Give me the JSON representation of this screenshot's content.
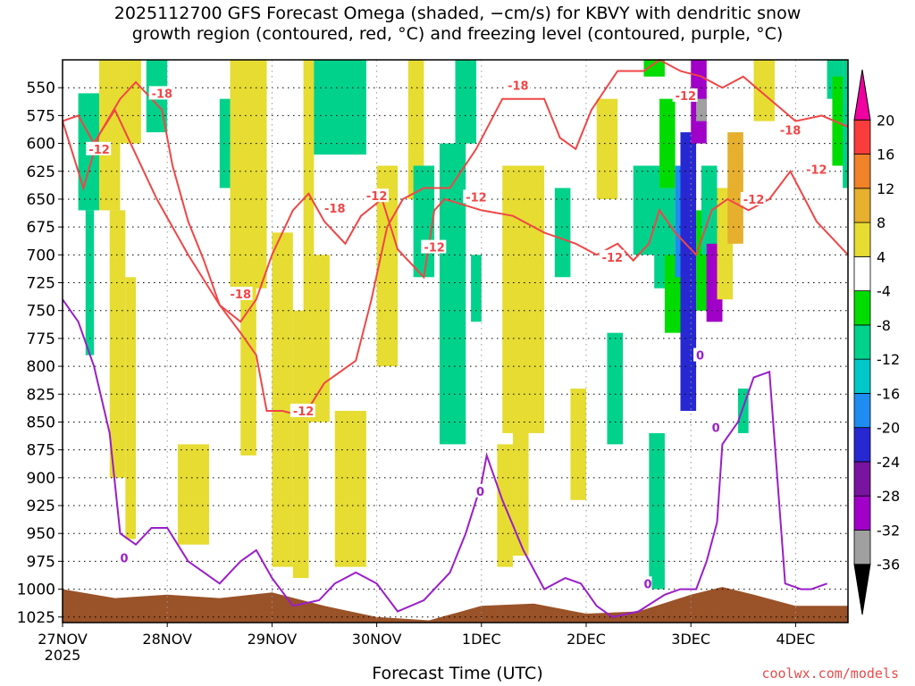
{
  "title": "2025112700 GFS Forecast Omega (shaded, −cm/s) for KBVY with dendritic snow\ngrowth region (contoured, red, °C) and freezing level (contoured, purple, °C)",
  "credit": "coolwx.com/models",
  "chart_data": {
    "type": "heatmap",
    "xlabel": "Forecast Time (UTC)",
    "x_ticks": [
      "27NOV",
      "28NOV",
      "29NOV",
      "30NOV",
      "1DEC",
      "2DEC",
      "3DEC",
      "4DEC"
    ],
    "x_first_tick_sublabel": "2025",
    "x_range_days": [
      0,
      7.5
    ],
    "y_ticks": [
      550,
      575,
      600,
      625,
      650,
      675,
      700,
      725,
      750,
      775,
      800,
      825,
      850,
      875,
      900,
      925,
      950,
      975,
      1000,
      1025
    ],
    "y_range_hPa": [
      1030,
      525
    ],
    "grid": "dotted",
    "colorbar": {
      "levels": [
        -36,
        -32,
        -28,
        -24,
        -20,
        -16,
        -12,
        -8,
        -4,
        4,
        8,
        12,
        16,
        20
      ],
      "colors": [
        "#000000",
        "#a0a0a0",
        "#a000c8",
        "#7814a0",
        "#2828d2",
        "#1e8cf0",
        "#00c8c8",
        "#00d28c",
        "#00dc00",
        "#ffffff",
        "#e6dc32",
        "#e6af2d",
        "#f08228",
        "#fa3c3c",
        "#f000a0"
      ]
    },
    "series": [
      {
        "name": "dendritic snow growth (-12)",
        "color": "#f04646",
        "points": [
          [
            0.0,
            580
          ],
          [
            0.2,
            640
          ],
          [
            0.35,
            592
          ],
          [
            0.5,
            570
          ],
          [
            0.65,
            600
          ],
          [
            0.9,
            650
          ],
          [
            1.2,
            700
          ],
          [
            1.5,
            745
          ],
          [
            1.7,
            760
          ],
          [
            1.85,
            740
          ],
          [
            2.0,
            700
          ],
          [
            2.2,
            660
          ],
          [
            2.35,
            645
          ],
          [
            2.5,
            670
          ],
          [
            2.7,
            690
          ],
          [
            2.85,
            665
          ],
          [
            3.05,
            650
          ],
          [
            3.2,
            695
          ],
          [
            3.45,
            720
          ],
          [
            3.55,
            660
          ],
          [
            3.65,
            650
          ],
          [
            4.0,
            660
          ],
          [
            4.3,
            665
          ],
          [
            4.6,
            680
          ],
          [
            4.9,
            690
          ],
          [
            5.1,
            700
          ],
          [
            5.3,
            690
          ],
          [
            5.45,
            705
          ],
          [
            5.6,
            690
          ],
          [
            5.7,
            660
          ],
          [
            5.85,
            680
          ],
          [
            6.05,
            700
          ],
          [
            6.2,
            660
          ],
          [
            6.35,
            650
          ],
          [
            6.55,
            660
          ],
          [
            6.75,
            650
          ],
          [
            6.95,
            625
          ],
          [
            7.2,
            670
          ],
          [
            7.5,
            700
          ]
        ]
      },
      {
        "name": "dendritic snow growth (-18)",
        "color": "#f04646",
        "points": [
          [
            0.0,
            580
          ],
          [
            0.15,
            575
          ],
          [
            0.3,
            600
          ],
          [
            0.55,
            560
          ],
          [
            0.7,
            545
          ],
          [
            0.95,
            570
          ],
          [
            1.05,
            620
          ],
          [
            1.2,
            670
          ],
          [
            1.35,
            705
          ],
          [
            1.5,
            745
          ],
          [
            1.7,
            770
          ],
          [
            1.85,
            790
          ],
          [
            1.95,
            840
          ],
          [
            2.1,
            840
          ],
          [
            2.3,
            845
          ],
          [
            2.5,
            815
          ],
          [
            2.65,
            805
          ],
          [
            2.8,
            795
          ],
          [
            2.95,
            740
          ],
          [
            3.1,
            675
          ],
          [
            3.25,
            650
          ],
          [
            3.45,
            640
          ],
          [
            3.7,
            640
          ],
          [
            3.95,
            605
          ],
          [
            4.2,
            560
          ],
          [
            4.45,
            560
          ],
          [
            4.6,
            560
          ],
          [
            4.75,
            595
          ],
          [
            4.9,
            605
          ],
          [
            5.05,
            570
          ],
          [
            5.3,
            535
          ],
          [
            5.55,
            535
          ],
          [
            5.7,
            525
          ],
          [
            5.9,
            535
          ],
          [
            6.1,
            540
          ],
          [
            6.3,
            550
          ],
          [
            6.5,
            540
          ],
          [
            6.75,
            560
          ],
          [
            7.0,
            580
          ],
          [
            7.25,
            575
          ],
          [
            7.5,
            585
          ]
        ]
      },
      {
        "name": "freezing level (0)",
        "color": "#9a1ec8",
        "points": [
          [
            0.0,
            740
          ],
          [
            0.15,
            760
          ],
          [
            0.3,
            800
          ],
          [
            0.45,
            860
          ],
          [
            0.55,
            950
          ],
          [
            0.7,
            960
          ],
          [
            0.85,
            945
          ],
          [
            1.0,
            945
          ],
          [
            1.2,
            975
          ],
          [
            1.5,
            995
          ],
          [
            1.7,
            975
          ],
          [
            1.85,
            965
          ],
          [
            2.0,
            990
          ],
          [
            2.2,
            1015
          ],
          [
            2.45,
            1010
          ],
          [
            2.6,
            995
          ],
          [
            2.8,
            985
          ],
          [
            3.0,
            995
          ],
          [
            3.2,
            1020
          ],
          [
            3.45,
            1010
          ],
          [
            3.7,
            985
          ],
          [
            3.85,
            950
          ],
          [
            4.0,
            905
          ],
          [
            4.05,
            880
          ],
          [
            4.2,
            920
          ],
          [
            4.4,
            965
          ],
          [
            4.6,
            1000
          ],
          [
            4.8,
            990
          ],
          [
            4.95,
            995
          ],
          [
            5.1,
            1015
          ],
          [
            5.25,
            1025
          ],
          [
            5.5,
            1020
          ],
          [
            5.75,
            1005
          ],
          [
            5.9,
            1000
          ],
          [
            6.05,
            1000
          ],
          [
            6.15,
            975
          ],
          [
            6.25,
            940
          ],
          [
            6.3,
            870
          ],
          [
            6.45,
            850
          ],
          [
            6.6,
            810
          ],
          [
            6.75,
            805
          ],
          [
            6.9,
            995
          ],
          [
            7.05,
            1000
          ],
          [
            7.15,
            1000
          ],
          [
            7.3,
            995
          ]
        ]
      }
    ],
    "contour_labels": [
      {
        "text": "-18",
        "x": 0.85,
        "y": 555,
        "color": "#f04646"
      },
      {
        "text": "-12",
        "x": 0.25,
        "y": 605,
        "color": "#f04646"
      },
      {
        "text": "-18",
        "x": 2.5,
        "y": 658,
        "color": "#f04646"
      },
      {
        "text": "-12",
        "x": 2.9,
        "y": 647,
        "color": "#f04646"
      },
      {
        "text": "-18",
        "x": 1.6,
        "y": 735,
        "color": "#f04646"
      },
      {
        "text": "-12",
        "x": 2.2,
        "y": 840,
        "color": "#f04646"
      },
      {
        "text": "-12",
        "x": 3.45,
        "y": 693,
        "color": "#f04646"
      },
      {
        "text": "-12",
        "x": 3.85,
        "y": 648,
        "color": "#f04646"
      },
      {
        "text": "-18",
        "x": 4.25,
        "y": 548,
        "color": "#f04646"
      },
      {
        "text": "-12",
        "x": 5.15,
        "y": 702,
        "color": "#f04646"
      },
      {
        "text": "-12",
        "x": 5.85,
        "y": 557,
        "color": "#f04646"
      },
      {
        "text": "-12",
        "x": 6.5,
        "y": 650,
        "color": "#f04646"
      },
      {
        "text": "-18",
        "x": 6.85,
        "y": 588,
        "color": "#f04646"
      },
      {
        "text": "-12",
        "x": 7.1,
        "y": 623,
        "color": "#f04646"
      },
      {
        "text": "0",
        "x": 0.55,
        "y": 972,
        "color": "#9a1ec8"
      },
      {
        "text": "0",
        "x": 3.95,
        "y": 912,
        "color": "#9a1ec8"
      },
      {
        "text": "0",
        "x": 5.55,
        "y": 995,
        "color": "#9a1ec8"
      },
      {
        "text": "0",
        "x": 6.05,
        "y": 790,
        "color": "#9a1ec8"
      },
      {
        "text": "0",
        "x": 6.2,
        "y": 855,
        "color": "#9a1ec8"
      }
    ],
    "shaded_patches": [
      {
        "x": 0.15,
        "x2": 0.35,
        "p": 555,
        "p2": 660,
        "c": 7
      },
      {
        "x": 0.22,
        "x2": 0.3,
        "p": 660,
        "p2": 790,
        "c": 7
      },
      {
        "x": 0.35,
        "x2": 0.55,
        "p": 525,
        "p2": 660,
        "c": 10
      },
      {
        "x": 0.45,
        "x2": 0.6,
        "p": 660,
        "p2": 900,
        "c": 10
      },
      {
        "x": 0.55,
        "x2": 0.75,
        "p": 525,
        "p2": 600,
        "c": 10
      },
      {
        "x": 0.6,
        "x2": 0.7,
        "p": 720,
        "p2": 955,
        "c": 10
      },
      {
        "x": 0.8,
        "x2": 1.0,
        "p": 525,
        "p2": 590,
        "c": 7
      },
      {
        "x": 1.1,
        "x2": 1.4,
        "p": 870,
        "p2": 960,
        "c": 10
      },
      {
        "x": 1.5,
        "x2": 1.6,
        "p": 560,
        "p2": 640,
        "c": 7
      },
      {
        "x": 1.6,
        "x2": 1.95,
        "p": 525,
        "p2": 730,
        "c": 10
      },
      {
        "x": 1.7,
        "x2": 1.85,
        "p": 720,
        "p2": 880,
        "c": 10
      },
      {
        "x": 2.0,
        "x2": 2.2,
        "p": 680,
        "p2": 980,
        "c": 10
      },
      {
        "x": 2.2,
        "x2": 2.35,
        "p": 750,
        "p2": 990,
        "c": 10
      },
      {
        "x": 2.3,
        "x2": 2.55,
        "p": 700,
        "p2": 850,
        "c": 10
      },
      {
        "x": 2.3,
        "x2": 2.4,
        "p": 525,
        "p2": 700,
        "c": 10
      },
      {
        "x": 2.6,
        "x2": 2.9,
        "p": 840,
        "p2": 980,
        "c": 10
      },
      {
        "x": 2.4,
        "x2": 2.9,
        "p": 525,
        "p2": 610,
        "c": 7
      },
      {
        "x": 3.0,
        "x2": 3.2,
        "p": 620,
        "p2": 800,
        "c": 10
      },
      {
        "x": 3.3,
        "x2": 3.45,
        "p": 525,
        "p2": 650,
        "c": 10
      },
      {
        "x": 3.35,
        "x2": 3.55,
        "p": 620,
        "p2": 720,
        "c": 7
      },
      {
        "x": 3.6,
        "x2": 3.85,
        "p": 600,
        "p2": 870,
        "c": 7
      },
      {
        "x": 3.75,
        "x2": 3.95,
        "p": 525,
        "p2": 600,
        "c": 7
      },
      {
        "x": 3.9,
        "x2": 4.0,
        "p": 700,
        "p2": 760,
        "c": 7
      },
      {
        "x": 4.15,
        "x2": 4.3,
        "p": 870,
        "p2": 980,
        "c": 10
      },
      {
        "x": 4.2,
        "x2": 4.6,
        "p": 620,
        "p2": 860,
        "c": 10
      },
      {
        "x": 4.3,
        "x2": 4.45,
        "p": 850,
        "p2": 970,
        "c": 10
      },
      {
        "x": 4.7,
        "x2": 4.85,
        "p": 640,
        "p2": 720,
        "c": 7
      },
      {
        "x": 4.85,
        "x2": 5.0,
        "p": 820,
        "p2": 920,
        "c": 10
      },
      {
        "x": 5.1,
        "x2": 5.3,
        "p": 560,
        "p2": 650,
        "c": 10
      },
      {
        "x": 5.2,
        "x2": 5.35,
        "p": 770,
        "p2": 870,
        "c": 7
      },
      {
        "x": 5.55,
        "x2": 5.75,
        "p": 525,
        "p2": 540,
        "c": 8
      },
      {
        "x": 5.45,
        "x2": 5.7,
        "p": 620,
        "p2": 700,
        "c": 7
      },
      {
        "x": 5.6,
        "x2": 5.75,
        "p": 860,
        "p2": 1000,
        "c": 7
      },
      {
        "x": 5.65,
        "x2": 5.85,
        "p": 640,
        "p2": 730,
        "c": 7
      },
      {
        "x": 5.7,
        "x2": 5.85,
        "p": 560,
        "p2": 640,
        "c": 8
      },
      {
        "x": 5.75,
        "x2": 5.95,
        "p": 700,
        "p2": 770,
        "c": 8
      },
      {
        "x": 5.85,
        "x2": 6.0,
        "p": 620,
        "p2": 720,
        "c": 5
      },
      {
        "x": 5.9,
        "x2": 6.05,
        "p": 590,
        "p2": 840,
        "c": 4
      },
      {
        "x": 6.0,
        "x2": 6.15,
        "p": 525,
        "p2": 600,
        "c": 2
      },
      {
        "x": 6.05,
        "x2": 6.15,
        "p": 560,
        "p2": 580,
        "c": 1
      },
      {
        "x": 6.05,
        "x2": 6.2,
        "p": 660,
        "p2": 750,
        "c": 8
      },
      {
        "x": 6.1,
        "x2": 6.25,
        "p": 620,
        "p2": 700,
        "c": 7
      },
      {
        "x": 6.15,
        "x2": 6.3,
        "p": 700,
        "p2": 760,
        "c": 3
      },
      {
        "x": 6.15,
        "x2": 6.3,
        "p": 690,
        "p2": 760,
        "c": 2
      },
      {
        "x": 6.25,
        "x2": 6.4,
        "p": 640,
        "p2": 740,
        "c": 10
      },
      {
        "x": 6.35,
        "x2": 6.5,
        "p": 590,
        "p2": 690,
        "c": 11
      },
      {
        "x": 6.45,
        "x2": 6.55,
        "p": 820,
        "p2": 860,
        "c": 7
      },
      {
        "x": 6.6,
        "x2": 6.8,
        "p": 525,
        "p2": 580,
        "c": 10
      },
      {
        "x": 7.3,
        "x2": 7.45,
        "p": 525,
        "p2": 560,
        "c": 7
      },
      {
        "x": 7.35,
        "x2": 7.5,
        "p": 540,
        "p2": 620,
        "c": 8
      },
      {
        "x": 7.45,
        "x2": 7.5,
        "p": 525,
        "p2": 640,
        "c": 7
      }
    ]
  }
}
